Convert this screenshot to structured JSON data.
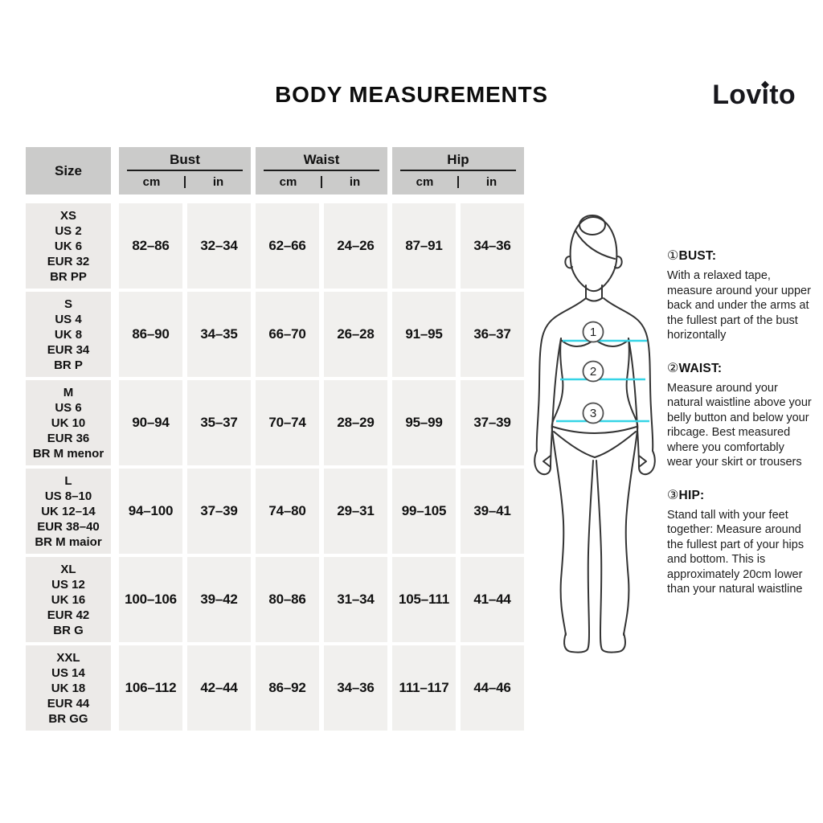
{
  "title": "BODY MEASUREMENTS",
  "logo": {
    "full": "Lovito",
    "pre": "Lov",
    "i": "ı",
    "post": "to"
  },
  "table": {
    "size_header": "Size",
    "groups": [
      {
        "label": "Bust",
        "units": [
          "cm",
          "in"
        ]
      },
      {
        "label": "Waist",
        "units": [
          "cm",
          "in"
        ]
      },
      {
        "label": "Hip",
        "units": [
          "cm",
          "in"
        ]
      }
    ],
    "rows": [
      {
        "size_lines": [
          "XS",
          "US 2",
          "UK 6",
          "EUR 32",
          "BR PP"
        ],
        "values": [
          "82–86",
          "32–34",
          "62–66",
          "24–26",
          "87–91",
          "34–36"
        ]
      },
      {
        "size_lines": [
          "S",
          "US 4",
          "UK 8",
          "EUR 34",
          "BR P"
        ],
        "values": [
          "86–90",
          "34–35",
          "66–70",
          "26–28",
          "91–95",
          "36–37"
        ]
      },
      {
        "size_lines": [
          "M",
          "US 6",
          "UK 10",
          "EUR 36",
          "BR M menor"
        ],
        "values": [
          "90–94",
          "35–37",
          "70–74",
          "28–29",
          "95–99",
          "37–39"
        ]
      },
      {
        "size_lines": [
          "L",
          "US 8–10",
          "UK 12–14",
          "EUR 38–40",
          "BR M maior"
        ],
        "values": [
          "94–100",
          "37–39",
          "74–80",
          "29–31",
          "99–105",
          "39–41"
        ]
      },
      {
        "size_lines": [
          "XL",
          "US 12",
          "UK 16",
          "EUR 42",
          "BR G"
        ],
        "values": [
          "100–106",
          "39–42",
          "80–86",
          "31–34",
          "105–111",
          "41–44"
        ]
      },
      {
        "size_lines": [
          "XXL",
          "US 14",
          "UK 18",
          "EUR 44",
          "BR GG"
        ],
        "values": [
          "106–112",
          "42–44",
          "86–92",
          "34–36",
          "111–117",
          "44–46"
        ]
      }
    ]
  },
  "figure": {
    "labels": [
      "1",
      "2",
      "3"
    ]
  },
  "instructions": [
    {
      "num": "①",
      "title": "BUST:",
      "body": "With a relaxed tape, measure around your upper back and under the arms at the fullest part of the bust horizontally"
    },
    {
      "num": "②",
      "title": "WAIST:",
      "body": "Measure around your natural waistline above your belly button and below your ribcage. Best measured where you comfortably wear your skirt or trousers"
    },
    {
      "num": "③",
      "title": "HIP:",
      "body": "Stand tall with your feet together: Measure around the fullest part of your hips and bottom. This is approximately 20cm lower than your natural waistline"
    }
  ],
  "colors": {
    "accent_cyan": "#35d4e6",
    "header_gray": "#cbcbca",
    "cell_gray": "#f1f0ee",
    "size_cell_gray": "#eceae8"
  }
}
